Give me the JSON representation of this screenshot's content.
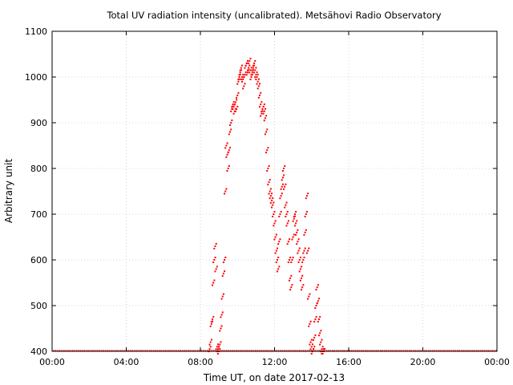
{
  "chart_data": {
    "type": "scatter",
    "title": "Total UV radiation intensity (uncalibrated). Metsähovi Radio Observatory",
    "xlabel": "Time UT, on date 2017-02-13",
    "ylabel": "Arbitrary unit",
    "xlim": [
      0,
      24
    ],
    "ylim": [
      400,
      1100
    ],
    "x_unit": "hours",
    "x_ticks": [
      0,
      4,
      8,
      12,
      16,
      20,
      24
    ],
    "x_tick_labels": [
      "00:00",
      "04:00",
      "08:00",
      "12:00",
      "16:00",
      "20:00",
      "00:00"
    ],
    "y_ticks": [
      400,
      500,
      600,
      700,
      800,
      900,
      1000,
      1100
    ],
    "y_tick_labels": [
      "400",
      "500",
      "600",
      "700",
      "800",
      "900",
      "1000",
      "1100"
    ],
    "grid": true,
    "legend": "none",
    "marker_color": "#ff0000",
    "series": [
      {
        "baseline": 400,
        "x": [
          8.5,
          8.55,
          8.6,
          8.65,
          8.7,
          8.75,
          8.8,
          8.85,
          8.9,
          8.95,
          9.0,
          9.05,
          9.1,
          9.15,
          9.2,
          9.25,
          9.3,
          9.35,
          9.4,
          9.45,
          9.5,
          9.55,
          9.6,
          9.65,
          9.7,
          9.75,
          9.8,
          9.85,
          9.9,
          9.95,
          10.0,
          10.05,
          10.1,
          10.15,
          10.2,
          10.25,
          10.3,
          10.35,
          10.4,
          10.45,
          10.5,
          10.55,
          10.6,
          10.65,
          10.7,
          10.75,
          10.8,
          10.85,
          10.9,
          10.95,
          11.0,
          11.05,
          11.1,
          11.15,
          11.2,
          11.25,
          11.3,
          11.35,
          11.4,
          11.45,
          11.5,
          11.55,
          11.6,
          11.65,
          11.7,
          11.75,
          11.8,
          11.85,
          11.9,
          11.95,
          12.0,
          12.05,
          12.1,
          12.15,
          12.2,
          12.25,
          12.3,
          12.35,
          12.4,
          12.45,
          12.5,
          12.55,
          12.6,
          12.65,
          12.7,
          12.75,
          12.8,
          12.85,
          12.9,
          12.95,
          13.0,
          13.05,
          13.1,
          13.15,
          13.2,
          13.25,
          13.3,
          13.35,
          13.4,
          13.45,
          13.5,
          13.55,
          13.6,
          13.65,
          13.7,
          13.75,
          13.8,
          13.85,
          13.9,
          13.95,
          14.0,
          14.05,
          14.1,
          14.15,
          14.2,
          14.25,
          14.3,
          14.35,
          14.4,
          14.45,
          14.5,
          14.55,
          14.6,
          14.65
        ],
        "y": [
          405,
          420,
          460,
          470,
          550,
          600,
          630,
          580,
          410,
          405,
          400,
          415,
          450,
          480,
          520,
          570,
          600,
          750,
          850,
          830,
          800,
          840,
          880,
          900,
          930,
          940,
          935,
          925,
          945,
          930,
          960,
          990,
          1000,
          1010,
          1020,
          1000,
          995,
          980,
          1005,
          1025,
          1030,
          1010,
          1020,
          1035,
          1015,
          1000,
          1010,
          1020,
          1030,
          1015,
          1005,
          1000,
          990,
          980,
          960,
          940,
          920,
          930,
          935,
          925,
          910,
          880,
          840,
          800,
          770,
          750,
          740,
          730,
          720,
          700,
          680,
          650,
          620,
          600,
          580,
          640,
          700,
          740,
          760,
          780,
          800,
          760,
          720,
          700,
          680,
          640,
          600,
          560,
          540,
          600,
          650,
          690,
          700,
          680,
          660,
          640,
          620,
          600,
          580,
          560,
          540,
          600,
          620,
          660,
          700,
          740,
          620,
          520,
          460,
          420,
          410,
          400,
          405,
          430,
          470,
          500,
          540,
          510,
          470,
          440,
          420,
          405,
          400,
          400
        ]
      }
    ]
  }
}
